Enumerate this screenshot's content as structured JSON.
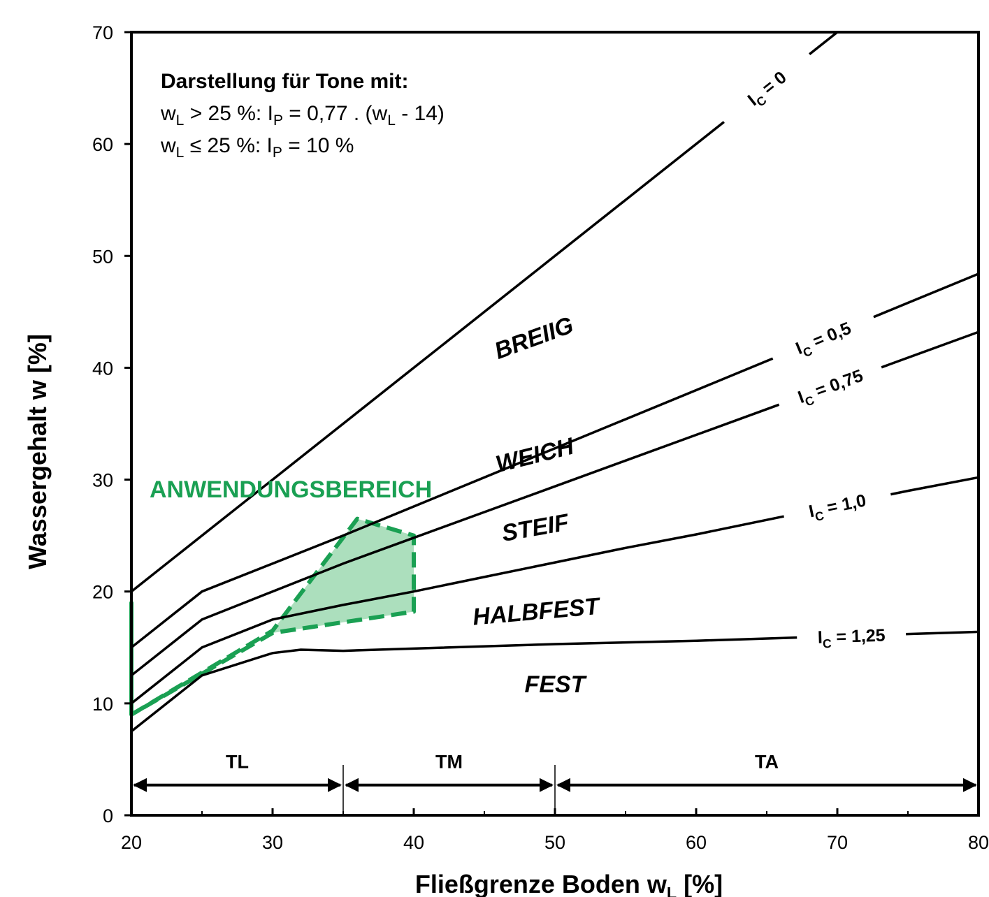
{
  "chart_data": {
    "type": "line",
    "xlabel": "Fließgrenze Boden w",
    "xlabel_sub": "L",
    "xlabel_suffix": " [%]",
    "ylabel": "Wassergehalt w [%]",
    "xlim": [
      20,
      80
    ],
    "ylim": [
      0,
      70
    ],
    "x_ticks": [
      20,
      30,
      40,
      50,
      60,
      70,
      80
    ],
    "y_ticks": [
      0,
      10,
      20,
      30,
      40,
      50,
      60,
      70
    ],
    "note": {
      "title": "Darstellung für Tone mit:",
      "line1": {
        "a": "w",
        "a_sub": "L",
        "b": " > 25 %: I",
        "b_sub": "P",
        "c": " = 0,77 . (w",
        "c_sub": "L",
        "d": " - 14)"
      },
      "line2": {
        "a": "w",
        "a_sub": "L",
        "b": " ≤ 25 %: I",
        "b_sub": "P",
        "c": " = 10 %"
      }
    },
    "series": [
      {
        "label": "I",
        "label_sub": "C",
        "label_suffix": " = 0",
        "ic": 0,
        "x": [
          20,
          25,
          30,
          35,
          40,
          45,
          50,
          55,
          60,
          65,
          70,
          75,
          80
        ],
        "y": [
          20,
          25,
          30,
          35,
          40,
          45,
          50,
          55,
          60,
          65,
          70,
          75,
          80
        ]
      },
      {
        "label": "I",
        "label_sub": "C",
        "label_suffix": " = 0,5",
        "ic": 0.5,
        "x": [
          20,
          25,
          30,
          35,
          40,
          45,
          50,
          55,
          60,
          65,
          70,
          75,
          80
        ],
        "y": [
          15,
          20,
          22.5,
          25,
          27.6,
          30.2,
          32.8,
          35.4,
          38.0,
          40.6,
          43.2,
          45.8,
          48.4
        ]
      },
      {
        "label": "I",
        "label_sub": "C",
        "label_suffix": " = 0,75",
        "ic": 0.75,
        "x": [
          20,
          25,
          30,
          35,
          40,
          45,
          50,
          55,
          60,
          65,
          70,
          75,
          80
        ],
        "y": [
          12.5,
          17.5,
          20.0,
          22.5,
          24.8,
          27.1,
          29.4,
          31.7,
          34.0,
          36.3,
          38.6,
          40.9,
          43.2
        ]
      },
      {
        "label": "I",
        "label_sub": "C",
        "label_suffix": " = 1,0",
        "ic": 1.0,
        "x": [
          20,
          25,
          30,
          35,
          40,
          45,
          50,
          55,
          60,
          65,
          70,
          75,
          80
        ],
        "y": [
          10,
          15,
          17.5,
          18.8,
          20.0,
          21.3,
          22.6,
          23.9,
          25.1,
          26.4,
          27.7,
          29.0,
          30.2
        ]
      },
      {
        "label": "I",
        "label_sub": "C",
        "label_suffix": " = 1,25",
        "ic": 1.25,
        "x": [
          20,
          25,
          30,
          32,
          35,
          40,
          50,
          60,
          70,
          80
        ],
        "y": [
          7.5,
          12.5,
          14.5,
          14.8,
          14.7,
          14.9,
          15.3,
          15.6,
          16.0,
          16.4
        ]
      }
    ],
    "zones": [
      "BREIIG",
      "WEICH",
      "STEIF",
      "HALBFEST",
      "FEST"
    ],
    "application_area": {
      "label": "ANWENDUNGSBEREICH",
      "color": "#1aa053",
      "fill": "#9ed9b2",
      "x": [
        20,
        20,
        30,
        36,
        40,
        40,
        30,
        20
      ],
      "y": [
        19,
        9,
        16.5,
        26.5,
        25,
        18.2,
        16.3,
        9
      ]
    },
    "ranges": [
      {
        "label": "TL",
        "from": 20,
        "to": 35
      },
      {
        "label": "TM",
        "from": 35,
        "to": 50
      },
      {
        "label": "TA",
        "from": 50,
        "to": 80
      }
    ]
  }
}
